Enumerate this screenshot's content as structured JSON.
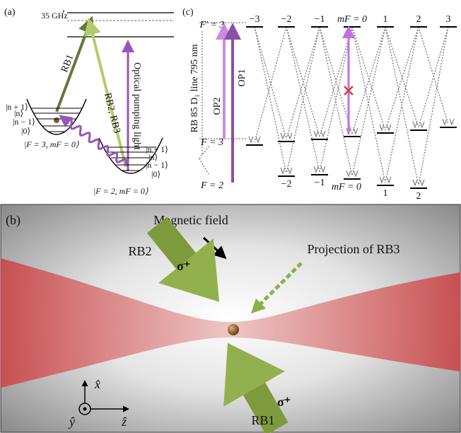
{
  "panel_a": {
    "label": "(a)",
    "splitting": "35 GHz",
    "beams": {
      "rb1": "RB1",
      "rb2_rb3": "RB2, RB3",
      "pumping": "Optical pumping light"
    },
    "left_levels": [
      "|n + 1⟩",
      "|n⟩",
      "|n − 1⟩",
      "|0⟩"
    ],
    "left_state": "|F = 3, mF = 0⟩",
    "right_levels": [
      "|n + 1⟩",
      "|n⟩",
      "|n − 1⟩",
      "|0⟩"
    ],
    "right_state": "|F = 2, mF = 0⟩"
  },
  "panel_c": {
    "label": "(c)",
    "excited": "F′ = 3",
    "upper_ground": "F = 3",
    "lower_ground": "F = 2",
    "transition": "RB 85 D₁ line 795 nm",
    "op2": "OP2",
    "op1": "OP1",
    "top_labels": [
      "−3",
      "−2",
      "−1",
      "mF = 0",
      "1",
      "2",
      "3"
    ],
    "bottom_labels": [
      "−2",
      "−1",
      "mF = 0",
      "1",
      "2"
    ]
  },
  "panel_b": {
    "label": "(b)",
    "magnetic_field": "Magnetic field",
    "rb2": "RB2",
    "rb1": "RB1",
    "sigma_rb2": "σ⁺",
    "sigma_rb1": "σ⁺",
    "projection": "Projection of RB3",
    "axes": {
      "x": "x̂",
      "y": "ŷ",
      "z": "ẑ"
    }
  }
}
